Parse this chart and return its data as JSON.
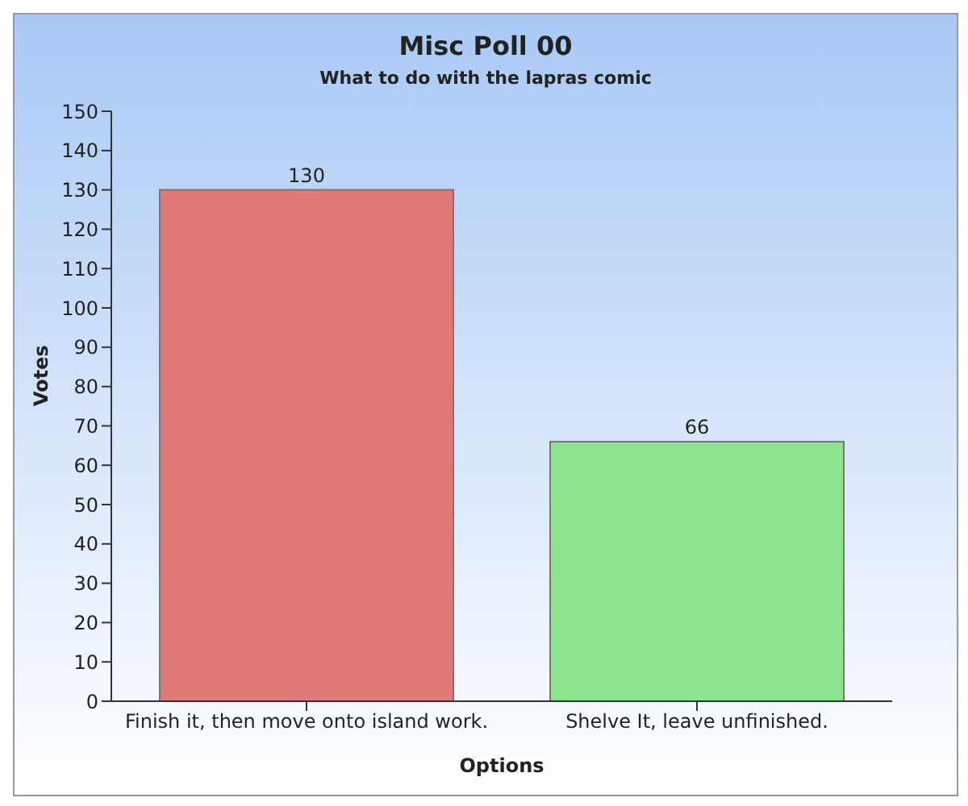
{
  "chart_data": {
    "type": "bar",
    "title": "Misc Poll 00",
    "subtitle": "What to do with the lapras comic",
    "xlabel": "Options",
    "ylabel": "Votes",
    "categories": [
      "Finish it, then move onto island work.",
      "Shelve It, leave unfinished."
    ],
    "values": [
      130,
      66
    ],
    "colors": [
      "#e07a7a",
      "#8ee48e"
    ],
    "ylim": [
      0,
      150
    ],
    "yticks": [
      0,
      10,
      20,
      30,
      40,
      50,
      60,
      70,
      80,
      90,
      100,
      110,
      120,
      130,
      140,
      150
    ],
    "data_labels": true
  }
}
